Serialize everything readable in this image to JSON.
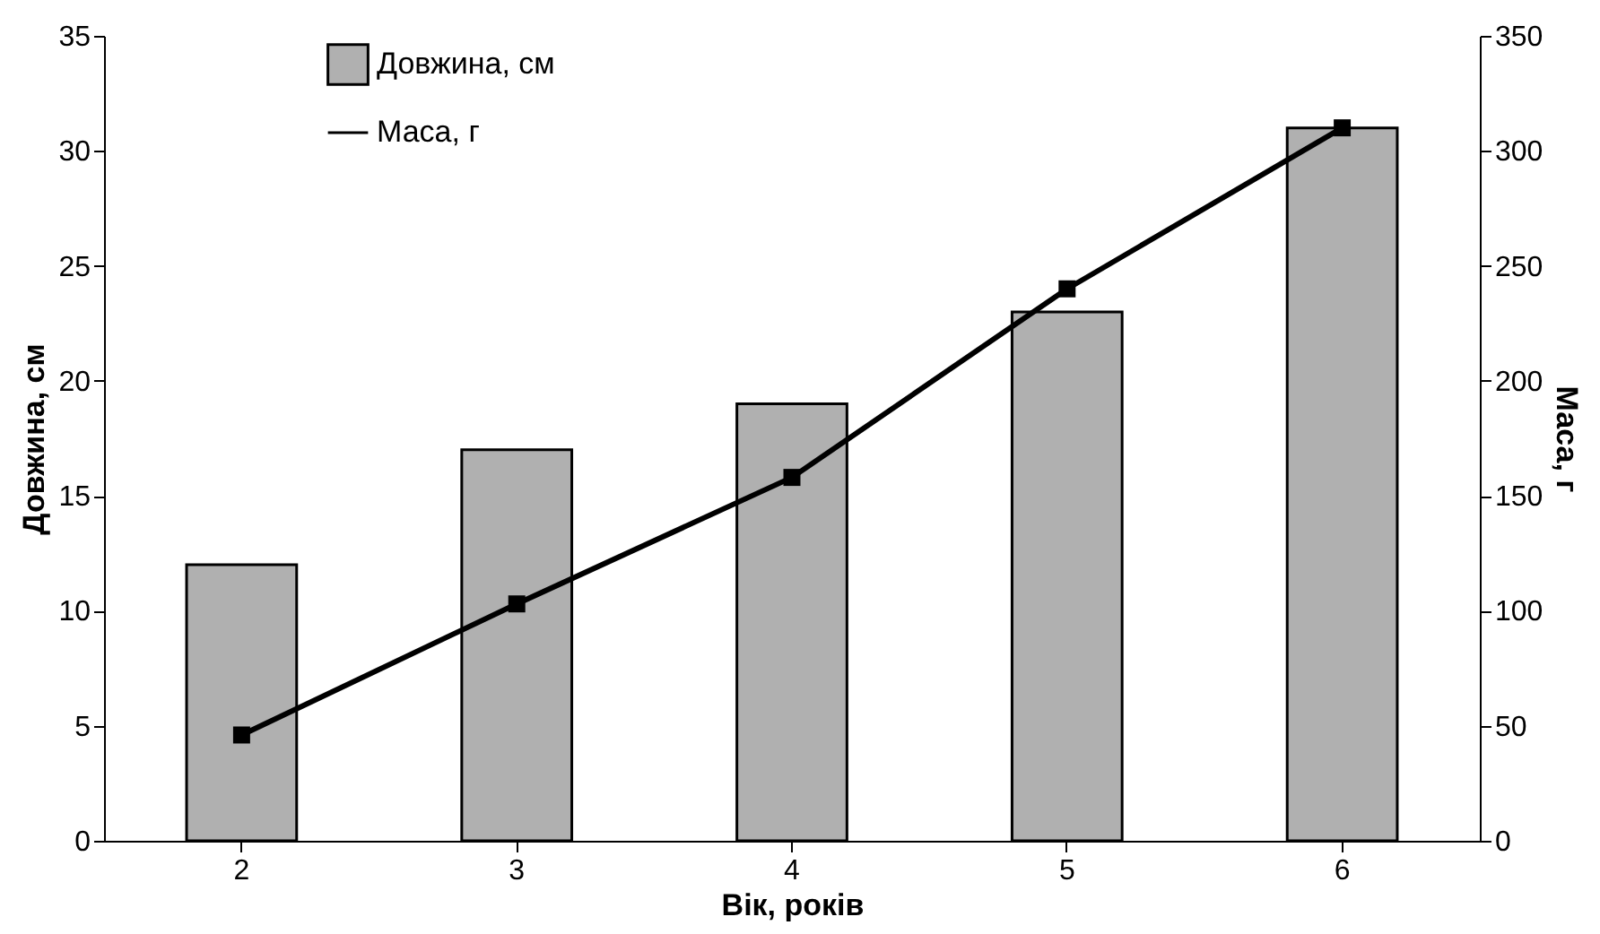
{
  "chart_data": {
    "type": "bar",
    "categories": [
      "2",
      "3",
      "4",
      "5",
      "6"
    ],
    "xlabel": "Вік, років",
    "ylabel": "Довжина, см",
    "y2label": "Маса, г",
    "series": [
      {
        "name": "Довжина, см",
        "color": "#b0b0b0",
        "values": [
          12,
          17,
          19,
          23,
          31
        ]
      },
      {
        "name": "Маса, г",
        "type": "line",
        "axis": "y2",
        "color": "#000000",
        "marker": "square",
        "values": [
          46,
          103,
          158,
          240,
          310
        ]
      }
    ],
    "ylim": [
      0,
      35
    ],
    "yticks": [
      0,
      5,
      10,
      15,
      20,
      25,
      30,
      35
    ],
    "y2lim": [
      0,
      350
    ],
    "y2ticks": [
      0,
      50,
      100,
      150,
      200,
      250,
      300,
      350
    ],
    "legend": "top left",
    "grid": false
  }
}
